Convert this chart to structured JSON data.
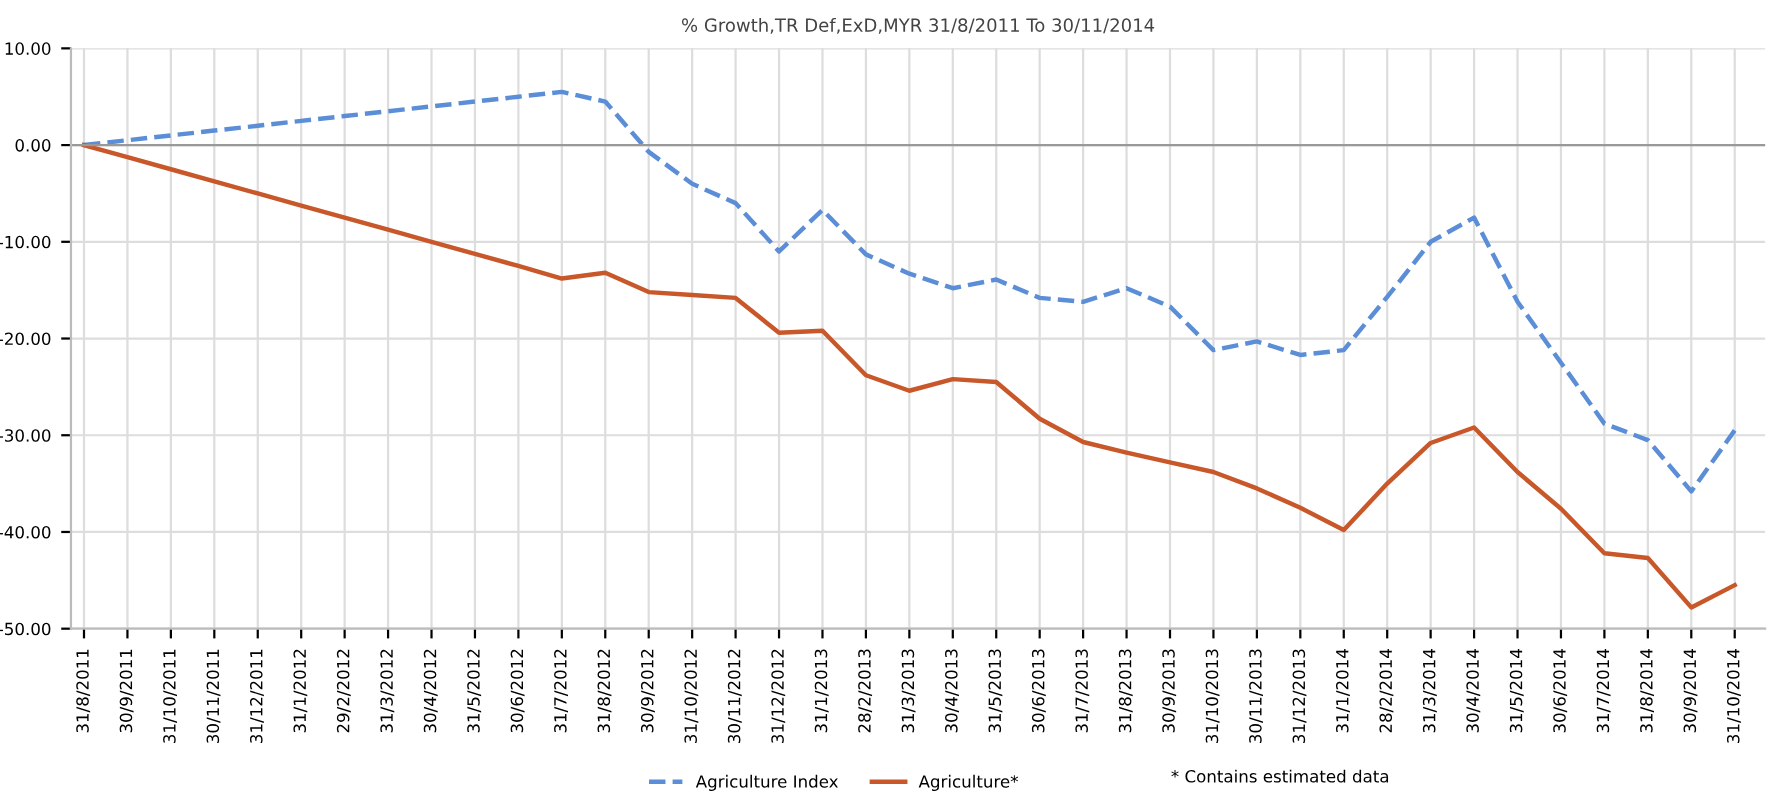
{
  "chart_data": {
    "type": "line",
    "title": "% Growth,TR Def,ExD,MYR 31/8/2011 To 30/11/2014",
    "categories": [
      "31/8/2011",
      "30/9/2011",
      "31/10/2011",
      "30/11/2011",
      "31/12/2011",
      "31/1/2012",
      "29/2/2012",
      "31/3/2012",
      "30/4/2012",
      "31/5/2012",
      "30/6/2012",
      "31/7/2012",
      "31/8/2012",
      "30/9/2012",
      "31/10/2012",
      "30/11/2012",
      "31/12/2012",
      "31/1/2013",
      "28/2/2013",
      "31/3/2013",
      "30/4/2013",
      "31/5/2013",
      "30/6/2013",
      "31/7/2013",
      "31/8/2013",
      "30/9/2013",
      "31/10/2013",
      "30/11/2013",
      "31/12/2013",
      "31/1/2014",
      "28/2/2014",
      "31/3/2014",
      "30/4/2014",
      "31/5/2014",
      "30/6/2014",
      "31/7/2014",
      "31/8/2014",
      "30/9/2014",
      "31/10/2014"
    ],
    "series": [
      {
        "name": "Agriculture Index",
        "color": "#5b8ed6",
        "line_style": "dashed",
        "values": [
          0,
          0.5,
          1,
          1.5,
          2,
          2.5,
          3,
          3.5,
          4,
          4.5,
          5,
          5.5,
          4.5,
          -0.7,
          -4,
          -6,
          -11,
          -6.7,
          -11.3,
          -13.3,
          -14.8,
          -13.9,
          -15.8,
          -16.2,
          -14.8,
          -16.7,
          -21.2,
          -20.3,
          -21.7,
          -21.2,
          -15.7,
          -10,
          -7.5,
          -16.2,
          -22.5,
          -28.8,
          -30.5,
          -35.8,
          -29.5
        ]
      },
      {
        "name": "Agriculture*",
        "color": "#c8582a",
        "line_style": "solid",
        "values": [
          0,
          -1.25,
          -2.5,
          -3.75,
          -5,
          -6.25,
          -7.5,
          -8.75,
          -10,
          -11.25,
          -12.5,
          -13.8,
          -13.2,
          -15.2,
          -15.5,
          -15.8,
          -19.4,
          -19.2,
          -23.8,
          -25.4,
          -24.2,
          -24.5,
          -28.3,
          -30.7,
          -31.8,
          -32.8,
          -33.8,
          -35.5,
          -37.5,
          -39.8,
          -35,
          -30.8,
          -29.2,
          -33.8,
          -37.6,
          -42.2,
          -42.7,
          -47.8,
          -45.5
        ]
      }
    ],
    "ylim": [
      -50,
      10
    ],
    "yticks": [
      {
        "value": -50,
        "label": "-50.00"
      },
      {
        "value": -40,
        "label": "-40.00"
      },
      {
        "value": -30,
        "label": "-30.00"
      },
      {
        "value": -20,
        "label": "-20.00"
      },
      {
        "value": -10,
        "label": "-10.00"
      },
      {
        "value": 0,
        "label": "0.00"
      },
      {
        "value": 10,
        "label": "10.00"
      }
    ],
    "grid": true,
    "legend": "bottom",
    "marker": "none",
    "annotations": [
      "* Contains estimated data"
    ]
  }
}
